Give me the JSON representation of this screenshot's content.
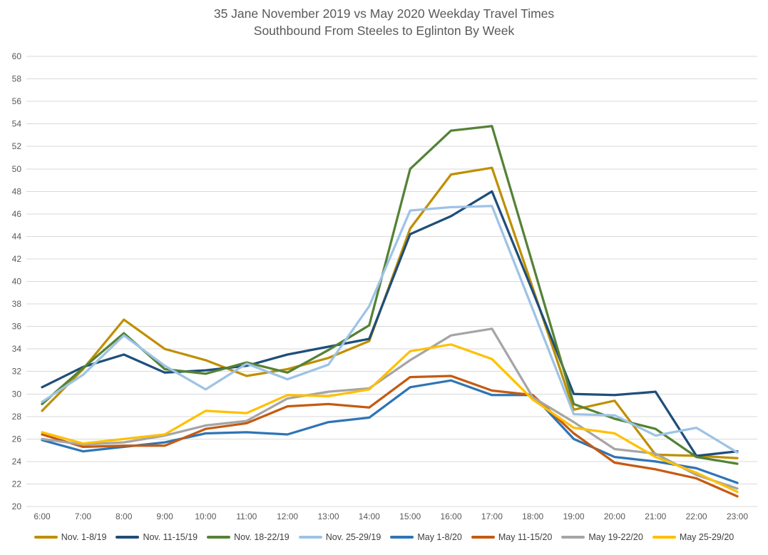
{
  "title": {
    "line1": "35 Jane November 2019 vs May 2020 Weekday Travel Times",
    "line2": "Southbound From Steeles to Eglinton By Week"
  },
  "colors": {
    "background": "#FFFFFF",
    "grid": "#D9D9D9",
    "axis_text": "#595959",
    "title_text": "#595959",
    "legend_text": "#404040"
  },
  "chart_data": {
    "type": "line",
    "title": "35 Jane November 2019 vs May 2020 Weekday Travel Times — Southbound From Steeles to Eglinton By Week",
    "xlabel": "",
    "ylabel": "",
    "x": [
      "6:00",
      "7:00",
      "8:00",
      "9:00",
      "10:00",
      "11:00",
      "12:00",
      "13:00",
      "14:00",
      "15:00",
      "16:00",
      "17:00",
      "18:00",
      "19:00",
      "20:00",
      "21:00",
      "22:00",
      "23:00"
    ],
    "ylim": [
      20,
      60
    ],
    "ytick_step": 2,
    "grid": "horizontal",
    "legend_position": "bottom",
    "series": [
      {
        "name": "Nov. 1-8/19",
        "color": "#BF8F00",
        "values": [
          28.5,
          32.2,
          36.6,
          34.0,
          33.0,
          31.6,
          32.2,
          33.2,
          34.7,
          44.7,
          49.5,
          50.1,
          39.4,
          28.6,
          29.4,
          24.6,
          24.5,
          24.3
        ]
      },
      {
        "name": "Nov. 11-15/19",
        "color": "#1F4E79",
        "values": [
          30.6,
          32.4,
          33.5,
          31.9,
          32.1,
          32.5,
          33.5,
          34.2,
          34.9,
          44.2,
          45.8,
          48.0,
          39.1,
          30.0,
          29.9,
          30.2,
          24.5,
          24.9
        ]
      },
      {
        "name": "Nov. 18-22/19",
        "color": "#548235",
        "values": [
          29.1,
          32.3,
          35.4,
          32.2,
          31.8,
          32.8,
          31.9,
          33.9,
          36.1,
          50.0,
          53.4,
          53.8,
          41.5,
          29.1,
          27.8,
          26.9,
          24.4,
          23.8
        ]
      },
      {
        "name": "Nov. 25-29/19",
        "color": "#9DC3E6",
        "values": [
          29.3,
          31.7,
          35.2,
          32.5,
          30.4,
          32.7,
          31.3,
          32.6,
          37.8,
          46.3,
          46.6,
          46.7,
          37.5,
          28.2,
          28.1,
          26.3,
          27.0,
          24.8
        ]
      },
      {
        "name": "May 1-8/20",
        "color": "#2E75B6",
        "values": [
          25.9,
          24.9,
          25.3,
          25.7,
          26.5,
          26.6,
          26.4,
          27.5,
          27.9,
          30.6,
          31.2,
          29.9,
          29.9,
          26.0,
          24.4,
          24.0,
          23.4,
          22.1
        ]
      },
      {
        "name": "May 11-15/20",
        "color": "#C55A11",
        "values": [
          26.4,
          25.3,
          25.4,
          25.4,
          26.9,
          27.4,
          28.9,
          29.1,
          28.8,
          31.5,
          31.6,
          30.3,
          29.9,
          26.5,
          23.9,
          23.3,
          22.5,
          20.9
        ]
      },
      {
        "name": "May 19-22/20",
        "color": "#A5A5A5",
        "values": [
          26.0,
          25.5,
          25.7,
          26.3,
          27.2,
          27.6,
          29.6,
          30.2,
          30.5,
          33.0,
          35.2,
          35.8,
          29.7,
          27.5,
          25.1,
          24.7,
          22.8,
          21.6
        ]
      },
      {
        "name": "May 25-29/20",
        "color": "#FFC000",
        "values": [
          26.6,
          25.6,
          26.0,
          26.4,
          28.5,
          28.3,
          29.9,
          29.8,
          30.4,
          33.8,
          34.4,
          33.1,
          29.5,
          27.0,
          26.5,
          24.4,
          23.0,
          21.3
        ]
      }
    ]
  }
}
